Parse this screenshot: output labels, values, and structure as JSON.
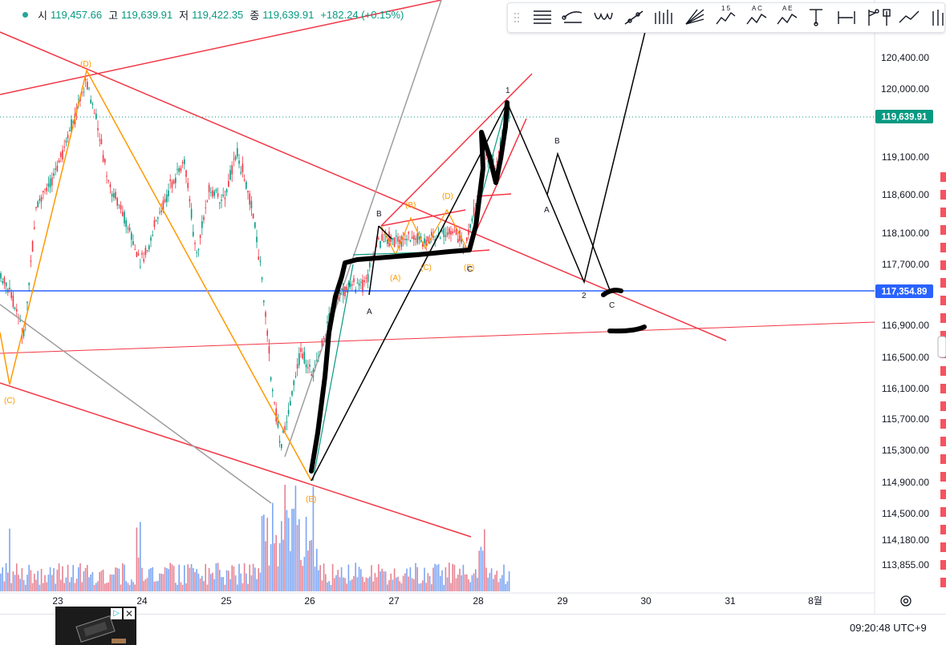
{
  "ohlc": {
    "open_label": "시",
    "open": "119,457.66",
    "high_label": "고",
    "high": "119,639.91",
    "low_label": "저",
    "low": "119,422.35",
    "close_label": "종",
    "close": "119,639.91",
    "change": "+182.24 (+0.15%)"
  },
  "price_axis": {
    "ticks": [
      "120,400.00",
      "120,000.00",
      "119,100.00",
      "118,600.00",
      "118,100.00",
      "117,700.00",
      "116,900.00",
      "116,500.00",
      "116,100.00",
      "115,700.00",
      "115,300.00",
      "114,900.00",
      "114,500.00",
      "114,180.00",
      "113,855.00"
    ],
    "current_price": "119,639.91",
    "hline_price": "117,354.89"
  },
  "time_axis": {
    "labels": [
      "23",
      "24",
      "25",
      "26",
      "27",
      "28",
      "29",
      "30",
      "31",
      "8월"
    ]
  },
  "wave_labels": {
    "d_top": "(D)",
    "c_left": "(C)",
    "e_bottom": "(E)",
    "a_paren": "(A)",
    "b_paren": "(B)",
    "c_paren": "(C)",
    "d_paren": "(D)",
    "e_paren": "(E)",
    "b_small": "B",
    "a_small": "A",
    "c_small": "C",
    "one": "1",
    "b_proj": "B",
    "a_proj": "A",
    "two": "2",
    "c_proj": "C"
  },
  "toolbar": {
    "tools": [
      "horizontal-lines-icon",
      "curve-lines-icon",
      "cycle-lines-icon",
      "trend-angle-icon",
      "fib-fan-icon",
      "gann-fan-icon",
      "wave-15-icon",
      "wave-ac-icon",
      "wave-ae-icon",
      "price-range-icon",
      "date-range-icon",
      "flag-icon",
      "pin-icon",
      "path-icon",
      "brush-icon"
    ],
    "wave_15": "1 5",
    "wave_ac": "A C",
    "wave_ae": "A E"
  },
  "ad": {
    "choice": "▷",
    "close": "✕"
  },
  "clock": "09:20:48 UTC+9",
  "colors": {
    "up": "#089981",
    "down": "#f23645",
    "hline": "#2962ff",
    "trend_red": "#f23645",
    "wave_orange": "#ff9800",
    "gray_line": "#9e9e9e",
    "ink": "#000000"
  }
}
